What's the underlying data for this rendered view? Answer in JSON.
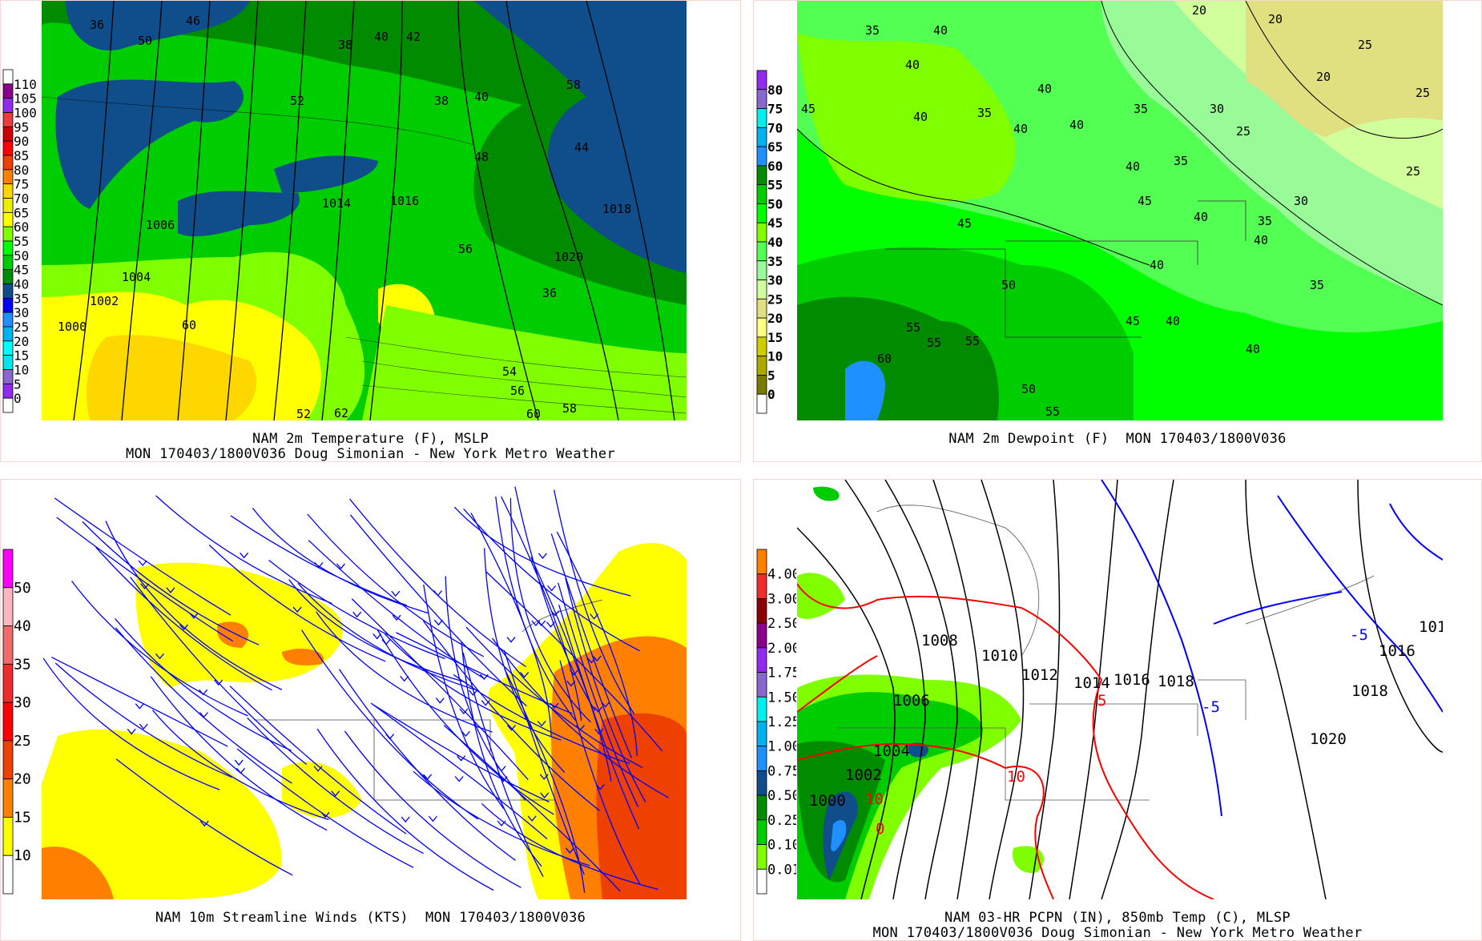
{
  "panels": {
    "temperature": {
      "caption_line1": "NAM 2m Temperature (F), MSLP",
      "caption_line2": "MON 170403/1800V036 Doug Simonian - New York Metro Weather",
      "colorbar": {
        "labels": [
          "110",
          "105",
          "100",
          "95",
          "90",
          "85",
          "80",
          "75",
          "70",
          "65",
          "60",
          "55",
          "50",
          "45",
          "40",
          "35",
          "30",
          "25",
          "20",
          "15",
          "10",
          "5",
          "0"
        ],
        "colors": [
          "#ffffff",
          "#8b008b",
          "#912cee",
          "#ee3b3b",
          "#cd0000",
          "#ff0000",
          "#ee4000",
          "#ff7f00",
          "#ffd700",
          "#eeee00",
          "#ffff00",
          "#7fff00",
          "#00ff00",
          "#00cd00",
          "#008b00",
          "#104e8b",
          "#0000ff",
          "#1e90ff",
          "#00b2ee",
          "#00ffff",
          "#00e5ee",
          "#8968cd",
          "#912cee",
          "#ffffff"
        ]
      },
      "contour_labels": [
        "36",
        "40",
        "46",
        "38",
        "42",
        "50",
        "52",
        "38",
        "58",
        "40",
        "1018",
        "1020",
        "54",
        "56",
        "58",
        "60",
        "1004",
        "1002",
        "1000",
        "1006",
        "60",
        "62",
        "48",
        "44",
        "56",
        "52",
        "36",
        "1016",
        "1014"
      ]
    },
    "dewpoint": {
      "caption_line1": "NAM 2m Dewpoint (F)  MON 170403/1800V036",
      "colorbar": {
        "labels": [
          "80",
          "75",
          "70",
          "65",
          "60",
          "55",
          "50",
          "45",
          "40",
          "35",
          "30",
          "25",
          "20",
          "15",
          "10",
          "5",
          "0"
        ],
        "colors": [
          "#912cee",
          "#8968cd",
          "#00eeee",
          "#00b2ee",
          "#1e90ff",
          "#008b00",
          "#00cd00",
          "#00ff00",
          "#7fff00",
          "#54ff54",
          "#98fb98",
          "#d0ff9c",
          "#e0e080",
          "#ffff80",
          "#cdcd00",
          "#aaaa00",
          "#7a7a00",
          "#ffffff"
        ]
      },
      "contour_labels": [
        "35",
        "40",
        "20",
        "20",
        "20",
        "25",
        "25",
        "40",
        "40",
        "45",
        "35",
        "40",
        "40",
        "35",
        "30",
        "25",
        "40",
        "45",
        "40",
        "35",
        "40",
        "30",
        "35",
        "40",
        "45",
        "40",
        "40",
        "35",
        "40",
        "50",
        "55",
        "55",
        "55",
        "60",
        "50",
        "55",
        "45",
        "25"
      ]
    },
    "streamlines": {
      "caption_line1": "NAM 10m Streamline Winds (KTS)  MON 170403/1800V036",
      "colorbar": {
        "labels": [
          "50",
          "40",
          "35",
          "30",
          "25",
          "20",
          "15",
          "10"
        ],
        "colors": [
          "#ff00ff",
          "#ffb6c1",
          "#f26b6b",
          "#ee2c2c",
          "#ff0000",
          "#ee4000",
          "#ff7f00",
          "#ffff00",
          "#ffffff"
        ]
      }
    },
    "precip": {
      "caption_line1": "NAM 03-HR PCPN (IN), 850mb Temp (C), MLSP",
      "caption_line2": "MON 170403/1800V036 Doug Simonian - New York Metro Weather",
      "colorbar": {
        "labels": [
          "4.00",
          "3.00",
          "2.50",
          "2.00",
          "1.75",
          "1.50",
          "1.25",
          "1.00",
          "0.75",
          "0.50",
          "0.25",
          "0.10",
          "0.01"
        ],
        "colors": [
          "#ff7f00",
          "#ee2c2c",
          "#8b0000",
          "#8b008b",
          "#912cee",
          "#8968cd",
          "#00eeee",
          "#00b2ee",
          "#1e90ff",
          "#104e8b",
          "#008b00",
          "#00cd00",
          "#7fff00",
          "#ffffff"
        ]
      },
      "contour_labels": [
        "1008",
        "1010",
        "1012",
        "1014",
        "1016",
        "1018",
        "1006",
        "1004",
        "1002",
        "1000",
        "1018",
        "1020",
        "1016",
        "101",
        "5",
        "10",
        "10",
        "0",
        "-5",
        "-5"
      ]
    }
  }
}
